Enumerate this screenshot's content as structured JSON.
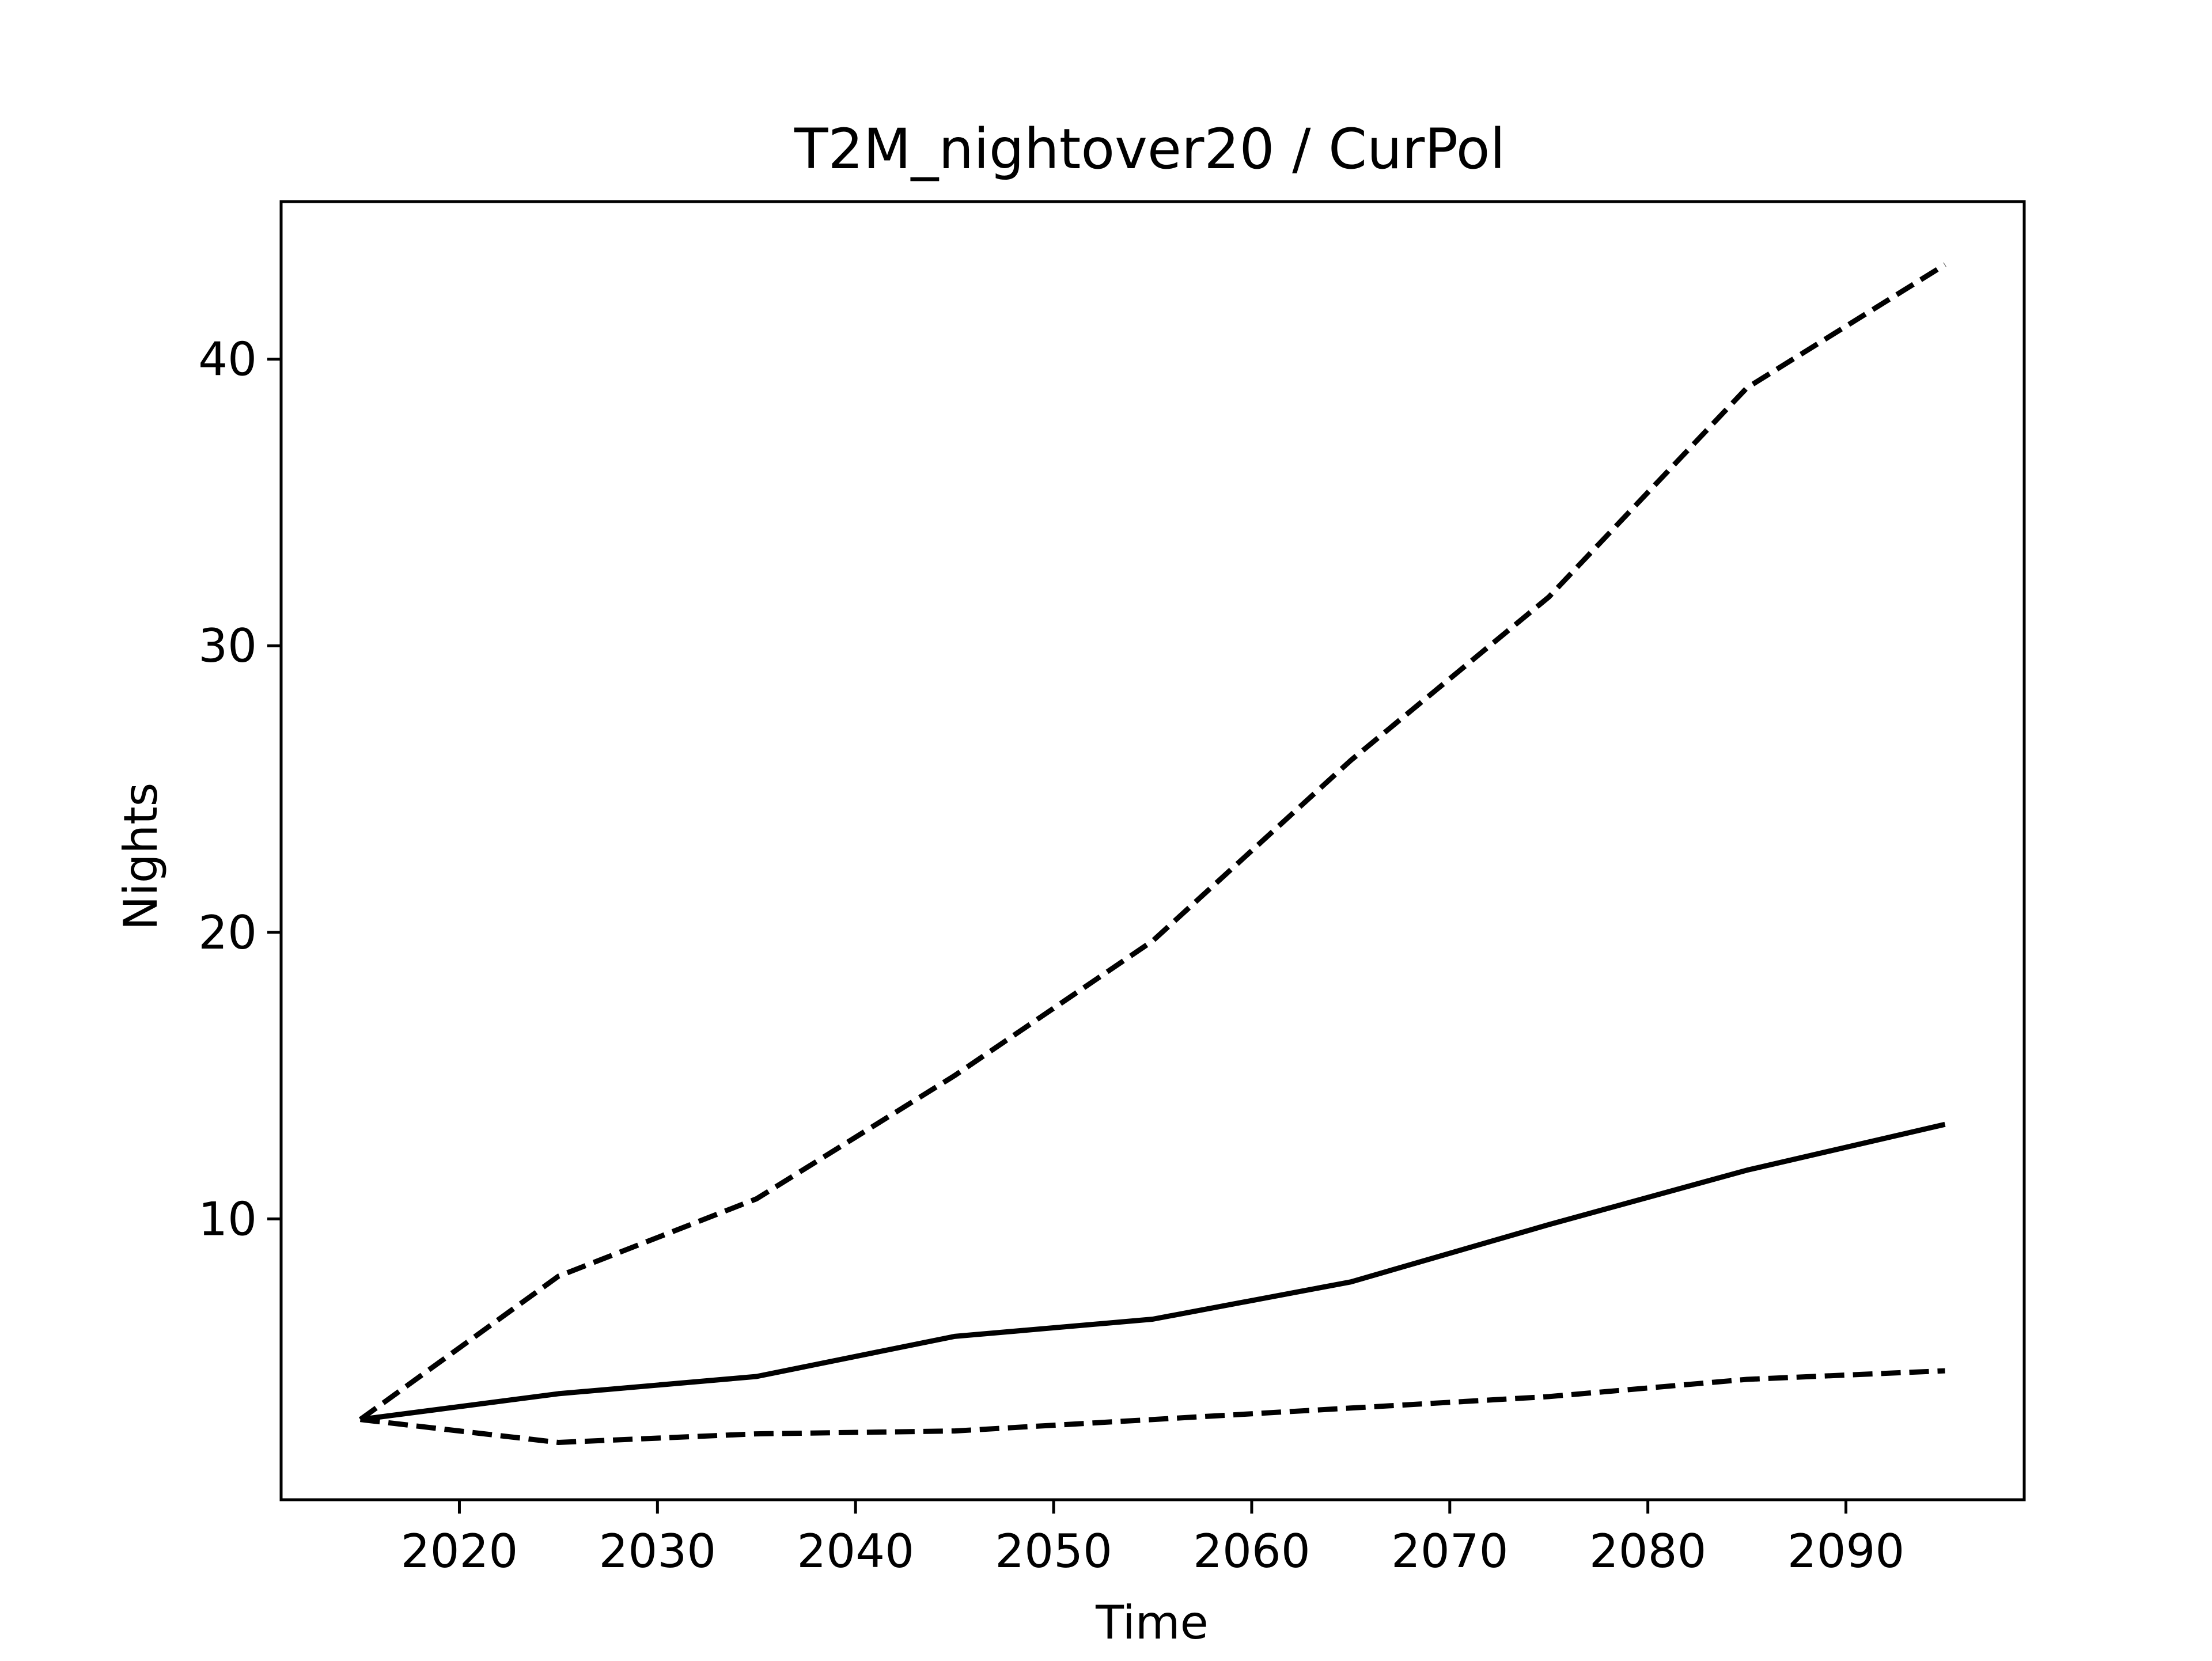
{
  "chart_data": {
    "type": "line",
    "title": "T2M_nightover20 / CurPol",
    "xlabel": "Time",
    "ylabel": "Nights",
    "x": [
      2015,
      2025,
      2035,
      2045,
      2055,
      2065,
      2075,
      2085,
      2095
    ],
    "xlim": [
      2011,
      2099
    ],
    "ylim": [
      0.2,
      45.5
    ],
    "xticks": [
      2020,
      2030,
      2040,
      2050,
      2060,
      2070,
      2080,
      2090
    ],
    "yticks": [
      10,
      20,
      30,
      40
    ],
    "grid": false,
    "legend": "none",
    "series": [
      {
        "style": "dashed",
        "color": "#000000",
        "values": [
          3.0,
          8.0,
          10.7,
          15.0,
          19.7,
          26.0,
          31.7,
          39.0,
          43.3
        ]
      },
      {
        "style": "solid",
        "color": "#000000",
        "values": [
          3.0,
          3.9,
          4.5,
          5.9,
          6.5,
          7.8,
          9.8,
          11.7,
          13.3
        ]
      },
      {
        "style": "dashed",
        "color": "#000000",
        "values": [
          3.0,
          2.2,
          2.5,
          2.6,
          3.0,
          3.4,
          3.8,
          4.4,
          4.7
        ]
      }
    ]
  }
}
